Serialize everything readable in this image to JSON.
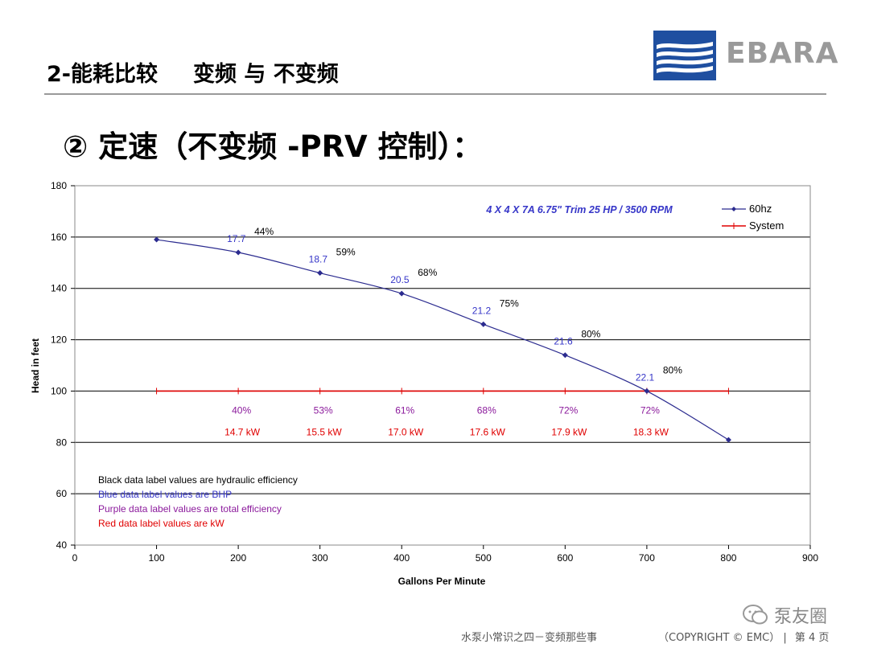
{
  "header": {
    "section": "2-能耗比较",
    "subtitle": "变频 与 不变频",
    "brand": "EBARA",
    "heading": "② 定速（不变频 -PRV 控制）："
  },
  "footer": {
    "course": "水泵小常识之四－变频那些事",
    "copyright": "（COPYRIGHT © EMC）",
    "page": "第 4 页",
    "watermark": "泵友圈"
  },
  "colors": {
    "curve": "#2b2b8f",
    "system": "#e00000",
    "bhp_label": "#3636c8",
    "total_eff_label": "#8b1a9c",
    "kw_label": "#e00000"
  },
  "chart_data": {
    "type": "line",
    "title": "4 X 4 X 7A  6.75\" Trim  25 HP / 3500 RPM",
    "xlabel": "Gallons Per Minute",
    "ylabel": "Head in feet",
    "xlim": [
      0,
      900
    ],
    "ylim": [
      40,
      180
    ],
    "xticks": [
      0,
      100,
      200,
      300,
      400,
      500,
      600,
      700,
      800,
      900
    ],
    "yticks": [
      40,
      60,
      80,
      100,
      120,
      140,
      160,
      180
    ],
    "grid": "horizontal",
    "legend_position": "top-right",
    "series": [
      {
        "name": "60hz",
        "x": [
          100,
          200,
          300,
          400,
          500,
          600,
          700,
          800
        ],
        "y": [
          159,
          154,
          146,
          138,
          126,
          114,
          100,
          81
        ]
      },
      {
        "name": "System",
        "x": [
          100,
          200,
          300,
          400,
          500,
          600,
          700,
          800
        ],
        "y": [
          100,
          100,
          100,
          100,
          100,
          100,
          100,
          100
        ]
      }
    ],
    "bhp_labels": [
      {
        "x": 200,
        "y": 154,
        "text": "17.7"
      },
      {
        "x": 300,
        "y": 146,
        "text": "18.7"
      },
      {
        "x": 400,
        "y": 138,
        "text": "20.5"
      },
      {
        "x": 500,
        "y": 126,
        "text": "21.2"
      },
      {
        "x": 600,
        "y": 114,
        "text": "21.6"
      },
      {
        "x": 700,
        "y": 100,
        "text": "22.1"
      }
    ],
    "hydraulic_efficiency_labels": [
      {
        "x": 200,
        "y": 154,
        "text": "44%"
      },
      {
        "x": 300,
        "y": 146,
        "text": "59%"
      },
      {
        "x": 400,
        "y": 138,
        "text": "68%"
      },
      {
        "x": 500,
        "y": 126,
        "text": "75%"
      },
      {
        "x": 600,
        "y": 114,
        "text": "80%"
      },
      {
        "x": 700,
        "y": 100,
        "text": "80%"
      }
    ],
    "total_efficiency_labels": [
      {
        "x": 200,
        "text": "40%"
      },
      {
        "x": 300,
        "text": "53%"
      },
      {
        "x": 400,
        "text": "61%"
      },
      {
        "x": 500,
        "text": "68%"
      },
      {
        "x": 600,
        "text": "72%"
      },
      {
        "x": 700,
        "text": "72%"
      }
    ],
    "kw_labels": [
      {
        "x": 200,
        "text": "14.7 kW"
      },
      {
        "x": 300,
        "text": "15.5 kW"
      },
      {
        "x": 400,
        "text": "17.0 kW"
      },
      {
        "x": 500,
        "text": "17.6 kW"
      },
      {
        "x": 600,
        "text": "17.9 kW"
      },
      {
        "x": 700,
        "text": "18.3 kW"
      }
    ],
    "notes": [
      "Black data label values are hydraulic efficiency",
      "Blue data label values are BHP",
      "Purple data label values are total efficiency",
      "Red data label values are kW"
    ]
  }
}
